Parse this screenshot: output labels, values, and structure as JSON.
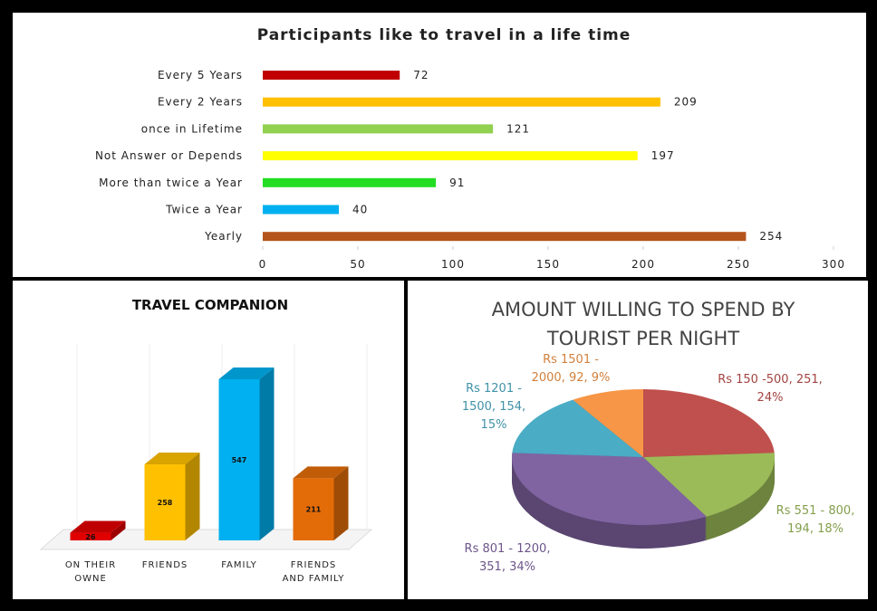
{
  "chart_data": [
    {
      "type": "hbar",
      "title": "Participants like to travel in a life time",
      "categories": [
        "Every 5 Years",
        "Every 2 Years",
        "once in Lifetime",
        "Not  Answer or Depends",
        "More than twice a Year",
        "Twice a Year",
        "Yearly"
      ],
      "values": [
        72,
        209,
        121,
        197,
        91,
        40,
        254
      ],
      "colors": [
        "#c00000",
        "#ffc000",
        "#92d050",
        "#ffff00",
        "#22dd22",
        "#00b0f0",
        "#b5541c"
      ],
      "xlim": [
        0,
        300
      ],
      "xticks": [
        0,
        50,
        100,
        150,
        200,
        250,
        300
      ]
    },
    {
      "type": "bar3d",
      "title": "TRAVEL COMPANION",
      "categories": [
        "ON THEIR OWNE",
        "FRIENDS",
        "FAMILY",
        "FRIENDS AND FAMILY"
      ],
      "values": [
        26,
        258,
        547,
        211
      ],
      "colors": [
        "#e00000",
        "#ffc000",
        "#00b0f0",
        "#e36c09"
      ]
    },
    {
      "type": "pie3d",
      "title": "AMOUNT WILLING TO SPEND BY TOURIST PER NIGHT",
      "values": [
        24,
        18,
        34,
        15,
        9
      ],
      "labels": [
        "Rs 150 -500, 251, 24%",
        "Rs 551 - 800, 194, 18%",
        "Rs 801 - 1200, 351, 34%",
        "Rs 1201 - 1500, 154, 15%",
        "Rs 1501 - 2000, 92, 9%"
      ],
      "colors": [
        "#c0504d",
        "#9bbb59",
        "#8064a2",
        "#4bacc6",
        "#f79646"
      ]
    }
  ]
}
